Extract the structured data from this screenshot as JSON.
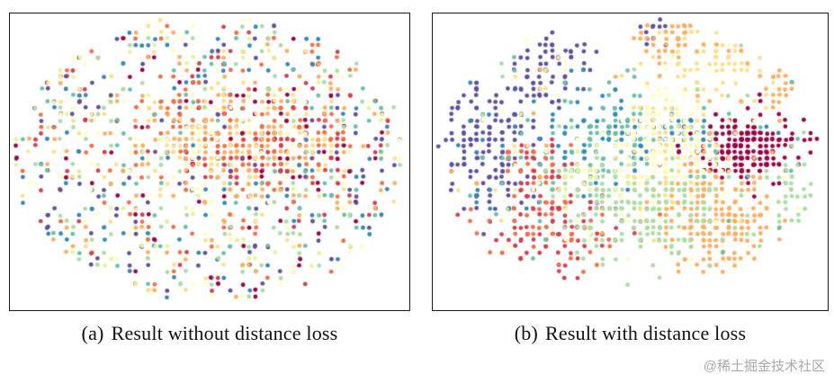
{
  "figure": {
    "captions": [
      {
        "label": "(a)",
        "text": "Result without distance loss"
      },
      {
        "label": "(b)",
        "text": "Result with distance loss"
      }
    ],
    "watermark": "@稀土掘金技术社区",
    "palette": [
      "#9e0142",
      "#d53e4f",
      "#f46d43",
      "#fdae61",
      "#fee08b",
      "#ffffbf",
      "#e6f598",
      "#abdda4",
      "#66c2a5",
      "#3288bd",
      "#5e4fa2"
    ],
    "border_color": "#1a1a1a"
  },
  "chart_data": [
    {
      "type": "scatter",
      "caption": "(a) Result without distance loss",
      "axes": "hidden",
      "legend": "none",
      "point_radius": 2.4,
      "grid_spacing": 7,
      "seed": 7,
      "bounds": {
        "cx": 0.5,
        "cy": 0.49,
        "rx": 0.49,
        "ry": 0.48
      },
      "clusters": [
        {
          "name": "mixed-all-classes",
          "dist": "uniform",
          "cx": 0.5,
          "cy": 0.49,
          "sx": 0.49,
          "sy": 0.47,
          "count": 1050,
          "colors": [
            0,
            1,
            2,
            3,
            4,
            5,
            6,
            7,
            8,
            9,
            10
          ]
        },
        {
          "name": "dense-red-core",
          "dist": "gauss",
          "cx": 0.66,
          "cy": 0.45,
          "sx": 0.11,
          "sy": 0.1,
          "count": 270,
          "colors": [
            0,
            1,
            2,
            3,
            3,
            4
          ]
        },
        {
          "name": "warm-center",
          "dist": "gauss",
          "cx": 0.48,
          "cy": 0.42,
          "sx": 0.12,
          "sy": 0.1,
          "count": 160,
          "colors": [
            3,
            4,
            5,
            2
          ]
        },
        {
          "name": "cool-sprinkle",
          "dist": "uniform",
          "cx": 0.5,
          "cy": 0.5,
          "sx": 0.46,
          "sy": 0.44,
          "count": 140,
          "colors": [
            8,
            9,
            10,
            7
          ]
        }
      ]
    },
    {
      "type": "scatter",
      "caption": "(b) Result with distance loss",
      "axes": "hidden",
      "legend": "none",
      "point_radius": 2.4,
      "grid_spacing": 7,
      "seed": 13,
      "bounds": {
        "cx": 0.5,
        "cy": 0.48,
        "rx": 0.49,
        "ry": 0.47
      },
      "clusters": [
        {
          "name": "indigo-left",
          "dist": "gauss",
          "cx": 0.13,
          "cy": 0.46,
          "sx": 0.07,
          "sy": 0.13,
          "count": 150,
          "colors": [
            10
          ]
        },
        {
          "name": "indigo-left-sparse",
          "dist": "uniform",
          "cx": 0.2,
          "cy": 0.45,
          "sx": 0.13,
          "sy": 0.22,
          "count": 60,
          "colors": [
            10,
            9
          ]
        },
        {
          "name": "indigo-top",
          "dist": "gauss",
          "cx": 0.3,
          "cy": 0.16,
          "sx": 0.045,
          "sy": 0.06,
          "count": 55,
          "colors": [
            10
          ]
        },
        {
          "name": "indigo-top-right",
          "dist": "gauss",
          "cx": 0.56,
          "cy": 0.06,
          "sx": 0.02,
          "sy": 0.025,
          "count": 14,
          "colors": [
            10
          ]
        },
        {
          "name": "teal-center",
          "dist": "gauss",
          "cx": 0.44,
          "cy": 0.42,
          "sx": 0.09,
          "sy": 0.1,
          "count": 190,
          "colors": [
            8,
            9
          ]
        },
        {
          "name": "teal-band-right",
          "dist": "gauss",
          "cx": 0.66,
          "cy": 0.4,
          "sx": 0.1,
          "sy": 0.025,
          "count": 70,
          "colors": [
            8,
            9
          ]
        },
        {
          "name": "darkred-right",
          "dist": "gauss",
          "cx": 0.8,
          "cy": 0.46,
          "sx": 0.065,
          "sy": 0.055,
          "count": 220,
          "colors": [
            0
          ]
        },
        {
          "name": "paleyellow-core",
          "dist": "gauss",
          "cx": 0.6,
          "cy": 0.47,
          "sx": 0.08,
          "sy": 0.12,
          "count": 270,
          "colors": [
            5,
            5,
            4
          ]
        },
        {
          "name": "yellow-top-right",
          "dist": "gauss",
          "cx": 0.72,
          "cy": 0.15,
          "sx": 0.09,
          "sy": 0.06,
          "count": 80,
          "colors": [
            4
          ]
        },
        {
          "name": "orange-top",
          "dist": "gauss",
          "cx": 0.6,
          "cy": 0.09,
          "sx": 0.05,
          "sy": 0.04,
          "count": 40,
          "colors": [
            3
          ]
        },
        {
          "name": "orange-right-top",
          "dist": "gauss",
          "cx": 0.88,
          "cy": 0.22,
          "sx": 0.04,
          "sy": 0.05,
          "count": 35,
          "colors": [
            3
          ]
        },
        {
          "name": "orange-bottom-right",
          "dist": "gauss",
          "cx": 0.72,
          "cy": 0.68,
          "sx": 0.09,
          "sy": 0.09,
          "count": 190,
          "colors": [
            3
          ]
        },
        {
          "name": "redorange-bottom-left",
          "dist": "gauss",
          "cx": 0.3,
          "cy": 0.7,
          "sx": 0.11,
          "sy": 0.09,
          "count": 170,
          "colors": [
            2,
            1
          ]
        },
        {
          "name": "red-left-mid",
          "dist": "gauss",
          "cx": 0.27,
          "cy": 0.52,
          "sx": 0.05,
          "sy": 0.05,
          "count": 40,
          "colors": [
            1,
            2
          ]
        },
        {
          "name": "green-bottom",
          "dist": "gauss",
          "cx": 0.55,
          "cy": 0.68,
          "sx": 0.12,
          "sy": 0.09,
          "count": 160,
          "colors": [
            7
          ]
        },
        {
          "name": "green-mid",
          "dist": "gauss",
          "cx": 0.42,
          "cy": 0.57,
          "sx": 0.08,
          "sy": 0.05,
          "count": 60,
          "colors": [
            7,
            6
          ]
        },
        {
          "name": "green-right-edge",
          "dist": "gauss",
          "cx": 0.9,
          "cy": 0.6,
          "sx": 0.04,
          "sy": 0.08,
          "count": 30,
          "colors": [
            7
          ]
        },
        {
          "name": "scatter-misc",
          "dist": "uniform",
          "cx": 0.5,
          "cy": 0.45,
          "sx": 0.45,
          "sy": 0.4,
          "count": 120,
          "colors": [
            4,
            5,
            7,
            8,
            3
          ]
        }
      ]
    }
  ]
}
